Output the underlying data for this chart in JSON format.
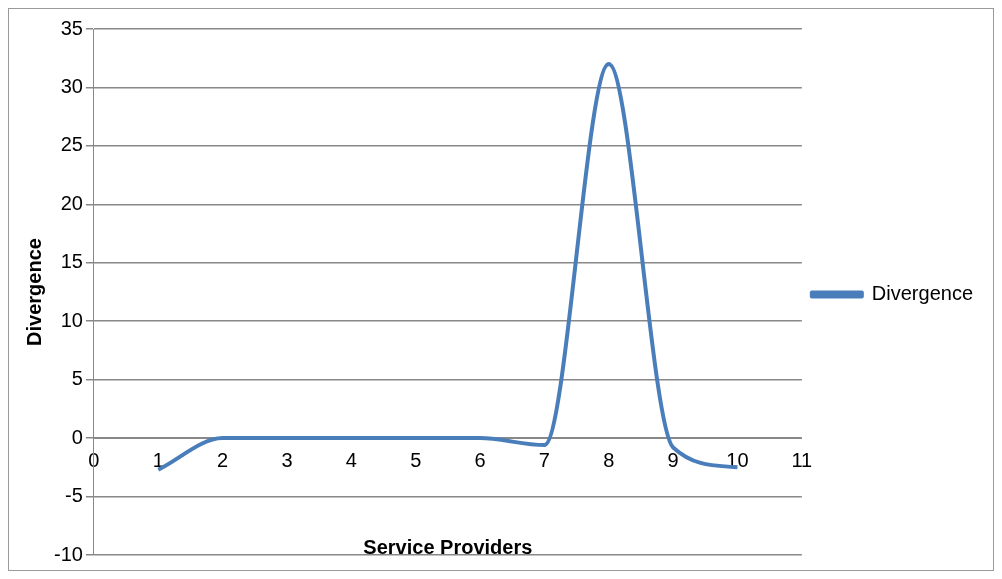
{
  "chart_data": {
    "type": "line",
    "xlabel": "Service Providers",
    "ylabel": "Divergence",
    "x": [
      1,
      2,
      3,
      4,
      5,
      6,
      7,
      8,
      9,
      10
    ],
    "series": [
      {
        "name": "Divergence",
        "color": "#4a7ebb",
        "values": [
          -2.7,
          0,
          0,
          0,
          0,
          0,
          -0.6,
          32,
          -0.8,
          -2.5
        ]
      }
    ],
    "xlim": [
      0,
      11
    ],
    "xticks": [
      0,
      1,
      2,
      3,
      4,
      5,
      6,
      7,
      8,
      9,
      10,
      11
    ],
    "ylim": [
      -10,
      35
    ],
    "yticks": [
      -10,
      -5,
      0,
      5,
      10,
      15,
      20,
      25,
      30,
      35
    ],
    "grid": "y",
    "legend": "right",
    "marker": "none",
    "line_style": "solid"
  }
}
